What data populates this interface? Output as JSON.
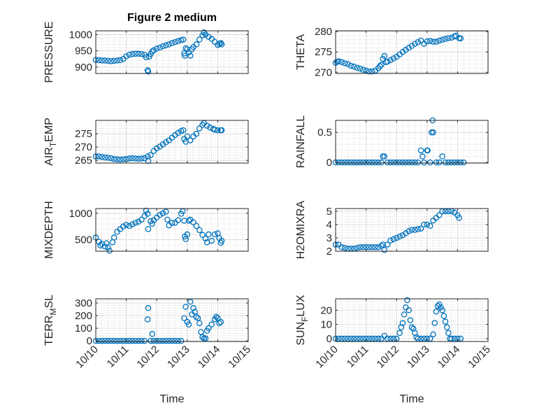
{
  "title": "Figure 2 medium",
  "colors": {
    "marker": "#0072BD",
    "axis": "#262626",
    "grid": "#dcdcdc"
  },
  "chart_data": [
    {
      "type": "scatter",
      "name": "pressure",
      "ylabel": "PRESSURE",
      "xlabel": "",
      "xlim": [
        0,
        5
      ],
      "ylim": [
        880,
        1012
      ],
      "yticks": [
        900,
        950,
        1000
      ],
      "ytick_labels": [
        "900",
        "950",
        "1000"
      ],
      "x": [
        0,
        0.1,
        0.2,
        0.3,
        0.4,
        0.5,
        0.6,
        0.7,
        0.8,
        0.9,
        1.0,
        1.1,
        1.2,
        1.3,
        1.4,
        1.5,
        1.6,
        1.65,
        1.7,
        1.72,
        1.75,
        1.8,
        1.85,
        1.9,
        2.0,
        2.1,
        2.2,
        2.3,
        2.4,
        2.5,
        2.6,
        2.7,
        2.8,
        2.87,
        2.9,
        2.92,
        2.95,
        3.0,
        3.05,
        3.1,
        3.15,
        3.2,
        3.3,
        3.4,
        3.5,
        3.55,
        3.6,
        3.7,
        3.8,
        3.9,
        4.0,
        4.05,
        4.1,
        4.13
      ],
      "y": [
        922,
        921,
        920,
        920,
        919,
        918,
        919,
        920,
        921,
        925,
        933,
        938,
        940,
        941,
        941,
        940,
        938,
        930,
        890,
        886,
        932,
        940,
        948,
        952,
        957,
        960,
        964,
        967,
        970,
        974,
        977,
        980,
        983,
        985,
        942,
        935,
        958,
        955,
        945,
        935,
        955,
        962,
        970,
        985,
        998,
        1007,
        1000,
        993,
        987,
        978,
        968,
        972,
        974,
        970
      ]
    },
    {
      "type": "scatter",
      "name": "theta",
      "ylabel": "THETA",
      "xlabel": "",
      "xlim": [
        0,
        5
      ],
      "ylim": [
        269.7,
        280.2
      ],
      "yticks": [
        270,
        275,
        280
      ],
      "ytick_labels": [
        "270",
        "275",
        "280"
      ],
      "x": [
        0,
        0.05,
        0.1,
        0.2,
        0.3,
        0.4,
        0.5,
        0.6,
        0.7,
        0.8,
        0.9,
        1.0,
        1.1,
        1.2,
        1.3,
        1.4,
        1.45,
        1.5,
        1.55,
        1.6,
        1.65,
        1.7,
        1.8,
        1.9,
        2.0,
        2.1,
        2.2,
        2.3,
        2.4,
        2.5,
        2.6,
        2.7,
        2.8,
        2.9,
        3.0,
        3.1,
        3.2,
        3.3,
        3.4,
        3.5,
        3.6,
        3.7,
        3.8,
        3.9,
        3.95,
        4.05,
        4.1
      ],
      "y": [
        272.3,
        272.6,
        272.7,
        272.5,
        272.2,
        272,
        271.6,
        271.4,
        271.1,
        270.9,
        270.6,
        270.4,
        270.2,
        270.2,
        270.4,
        271,
        271.5,
        271.8,
        273.3,
        274,
        272.5,
        272.6,
        273,
        273.4,
        273.8,
        274.4,
        275,
        275.5,
        276,
        276.5,
        277,
        277.4,
        277.8,
        277,
        277.6,
        277.7,
        277.5,
        277.5,
        277.8,
        278,
        278.2,
        278.4,
        278.5,
        278.8,
        279,
        278.4,
        278.3
      ]
    },
    {
      "type": "scatter",
      "name": "air-temp",
      "ylabel": "AIR_TEMP",
      "xlabel": "",
      "xlim": [
        0,
        5
      ],
      "ylim": [
        264,
        280
      ],
      "yticks": [
        265,
        270,
        275
      ],
      "ytick_labels": [
        "265",
        "270",
        "275"
      ],
      "x": [
        0,
        0.1,
        0.2,
        0.3,
        0.4,
        0.5,
        0.6,
        0.7,
        0.8,
        0.9,
        1.0,
        1.1,
        1.2,
        1.3,
        1.4,
        1.5,
        1.6,
        1.7,
        1.72,
        1.8,
        1.9,
        2.0,
        2.1,
        2.2,
        2.3,
        2.4,
        2.5,
        2.6,
        2.7,
        2.8,
        2.87,
        2.9,
        2.95,
        3.0,
        3.1,
        3.2,
        3.3,
        3.4,
        3.5,
        3.55,
        3.65,
        3.75,
        3.85,
        3.9,
        4.0,
        4.1,
        4.13
      ],
      "y": [
        266.5,
        266.5,
        266.3,
        266.1,
        266,
        265.8,
        265.5,
        265.4,
        265.3,
        265.4,
        265.5,
        265.7,
        265.8,
        265.7,
        265.6,
        265.7,
        265.8,
        266.5,
        264.8,
        267,
        268.5,
        269.5,
        270.2,
        271,
        271.8,
        272.5,
        273.5,
        274.5,
        275.3,
        276,
        276.3,
        273,
        272,
        274,
        272.5,
        274,
        275,
        277,
        278.3,
        279,
        278,
        277.3,
        276.8,
        276.5,
        276.3,
        276.3,
        276.3
      ]
    },
    {
      "type": "scatter",
      "name": "rainfall",
      "ylabel": "RAINFALL",
      "xlabel": "",
      "xlim": [
        0,
        5
      ],
      "ylim": [
        -0.01,
        0.7
      ],
      "yticks": [
        0,
        0.5
      ],
      "ytick_labels": [
        "0",
        "0.5"
      ],
      "x": [
        0,
        0.1,
        0.2,
        0.3,
        0.4,
        0.5,
        0.6,
        0.7,
        0.8,
        0.9,
        1.0,
        1.1,
        1.2,
        1.3,
        1.4,
        1.5,
        1.55,
        1.6,
        1.7,
        1.8,
        1.9,
        2.0,
        2.1,
        2.2,
        2.3,
        2.4,
        2.5,
        2.6,
        2.7,
        2.8,
        2.85,
        2.9,
        3.0,
        3.02,
        3.1,
        3.15,
        3.18,
        3.2,
        3.3,
        3.4,
        3.5,
        3.6,
        3.7,
        3.8,
        3.9,
        4.0,
        4.1,
        4.2
      ],
      "y": [
        0,
        0,
        0,
        0,
        0,
        0,
        0,
        0,
        0,
        0,
        0,
        0,
        0,
        0,
        0,
        0,
        0.1,
        0.1,
        0,
        0,
        0,
        0,
        0,
        0,
        0,
        0,
        0,
        0,
        0,
        0.2,
        0.1,
        0,
        0.2,
        0.2,
        0,
        0.5,
        0.7,
        0.5,
        0,
        0,
        0.1,
        0,
        0,
        0,
        0,
        0,
        0,
        0
      ]
    },
    {
      "type": "scatter",
      "name": "mixdepth",
      "ylabel": "MIXDEPTH",
      "xlabel": "",
      "xlim": [
        0,
        5
      ],
      "ylim": [
        280,
        1090
      ],
      "yticks": [
        500,
        1000
      ],
      "ytick_labels": [
        "500",
        "1000"
      ],
      "x": [
        0,
        0.1,
        0.15,
        0.2,
        0.3,
        0.35,
        0.4,
        0.45,
        0.55,
        0.6,
        0.7,
        0.8,
        0.9,
        1.0,
        1.1,
        1.2,
        1.3,
        1.4,
        1.5,
        1.6,
        1.65,
        1.7,
        1.72,
        1.8,
        1.85,
        1.9,
        2.0,
        2.1,
        2.2,
        2.3,
        2.35,
        2.4,
        2.5,
        2.6,
        2.7,
        2.8,
        2.85,
        2.9,
        2.92,
        2.95,
        3.0,
        3.05,
        3.1,
        3.2,
        3.3,
        3.4,
        3.5,
        3.6,
        3.65,
        3.7,
        3.8,
        3.9,
        4.0,
        4.05,
        4.1,
        4.13
      ],
      "y": [
        540,
        460,
        390,
        420,
        370,
        430,
        350,
        290,
        450,
        540,
        650,
        700,
        750,
        780,
        760,
        790,
        820,
        840,
        880,
        950,
        1050,
        990,
        700,
        850,
        800,
        870,
        920,
        970,
        1000,
        1030,
        880,
        770,
        820,
        820,
        870,
        990,
        1040,
        860,
        560,
        510,
        600,
        860,
        880,
        830,
        760,
        680,
        590,
        520,
        450,
        600,
        480,
        600,
        620,
        530,
        440,
        480
      ]
    },
    {
      "type": "scatter",
      "name": "h2omixra",
      "ylabel": "H2OMIXRA",
      "xlabel": "",
      "xlim": [
        0,
        5
      ],
      "ylim": [
        2,
        5.2
      ],
      "yticks": [
        2,
        3,
        4,
        5
      ],
      "ytick_labels": [
        "2",
        "3",
        "4",
        "5"
      ],
      "x": [
        0,
        0.1,
        0.2,
        0.3,
        0.4,
        0.5,
        0.6,
        0.7,
        0.8,
        0.9,
        1.0,
        1.1,
        1.2,
        1.3,
        1.4,
        1.5,
        1.55,
        1.6,
        1.7,
        1.8,
        1.9,
        2.0,
        2.1,
        2.2,
        2.3,
        2.4,
        2.5,
        2.6,
        2.7,
        2.8,
        2.9,
        3.0,
        3.1,
        3.2,
        3.3,
        3.4,
        3.5,
        3.6,
        3.7,
        3.8,
        3.9,
        4.0,
        4.05
      ],
      "y": [
        2.5,
        2.5,
        2.3,
        2.25,
        2.2,
        2.2,
        2.2,
        2.25,
        2.3,
        2.3,
        2.3,
        2.3,
        2.3,
        2.3,
        2.3,
        2.4,
        2.5,
        2.1,
        2.5,
        2.8,
        2.9,
        3.0,
        3.1,
        3.2,
        3.35,
        3.5,
        3.6,
        3.6,
        3.65,
        3.7,
        4.0,
        4.0,
        3.9,
        4.3,
        4.5,
        4.7,
        5.0,
        5.0,
        5.0,
        5.0,
        4.9,
        4.7,
        4.5
      ]
    },
    {
      "type": "scatter",
      "name": "terr-msl",
      "ylabel": "TERR_MSL",
      "xlabel": "Time",
      "xlim": [
        0,
        5
      ],
      "ylim": [
        -5,
        333
      ],
      "yticks": [
        0,
        100,
        200,
        300
      ],
      "ytick_labels": [
        "0",
        "100",
        "200",
        "300"
      ],
      "x": [
        0,
        0.1,
        0.2,
        0.3,
        0.4,
        0.5,
        0.6,
        0.7,
        0.8,
        0.9,
        1.0,
        1.1,
        1.2,
        1.3,
        1.4,
        1.5,
        1.6,
        1.7,
        1.72,
        1.8,
        1.85,
        1.9,
        2.0,
        2.1,
        2.2,
        2.3,
        2.4,
        2.5,
        2.6,
        2.7,
        2.8,
        2.9,
        2.95,
        3.0,
        3.05,
        3.1,
        3.15,
        3.2,
        3.25,
        3.3,
        3.35,
        3.4,
        3.45,
        3.5,
        3.55,
        3.6,
        3.65,
        3.7,
        3.8,
        3.9,
        3.95,
        4.0,
        4.05,
        4.1
      ],
      "y": [
        0,
        0,
        0,
        0,
        0,
        0,
        0,
        0,
        0,
        0,
        0,
        0,
        0,
        0,
        0,
        0,
        0,
        170,
        260,
        0,
        55,
        0,
        0,
        0,
        0,
        0,
        0,
        0,
        0,
        0,
        0,
        180,
        270,
        150,
        130,
        310,
        210,
        260,
        230,
        190,
        180,
        140,
        70,
        30,
        20,
        20,
        80,
        100,
        130,
        170,
        190,
        180,
        140,
        150
      ]
    },
    {
      "type": "scatter",
      "name": "sun-flux",
      "ylabel": "SUN_FLUX",
      "xlabel": "Time",
      "xlim": [
        0,
        5
      ],
      "ylim": [
        -2,
        28
      ],
      "yticks": [
        0,
        10,
        20
      ],
      "ytick_labels": [
        "0",
        "10",
        "20"
      ],
      "x": [
        0,
        0.1,
        0.2,
        0.3,
        0.4,
        0.5,
        0.6,
        0.7,
        0.8,
        0.9,
        1.0,
        1.1,
        1.2,
        1.3,
        1.4,
        1.5,
        1.6,
        1.7,
        1.8,
        1.9,
        2.0,
        2.1,
        2.15,
        2.2,
        2.25,
        2.3,
        2.35,
        2.4,
        2.45,
        2.5,
        2.55,
        2.6,
        2.65,
        2.7,
        2.8,
        2.9,
        3.0,
        3.1,
        3.2,
        3.25,
        3.3,
        3.35,
        3.4,
        3.45,
        3.5,
        3.55,
        3.6,
        3.65,
        3.7,
        3.75,
        3.8,
        3.9,
        4.0,
        4.1
      ],
      "y": [
        0,
        0,
        0,
        0,
        0,
        0,
        0,
        0,
        0,
        0,
        0,
        0,
        0,
        0,
        0,
        0,
        2,
        0,
        0,
        0,
        0,
        4,
        8,
        11,
        17,
        22,
        27,
        20,
        13,
        8,
        7,
        4,
        1,
        0,
        0,
        0,
        0,
        0,
        3,
        11,
        19,
        23,
        24,
        22,
        20,
        16,
        12,
        8,
        4,
        0,
        0,
        0,
        0,
        0
      ]
    }
  ],
  "xticks": [
    0,
    1,
    2,
    3,
    4,
    5
  ],
  "xtick_labels": [
    "10/10",
    "10/11",
    "10/12",
    "10/13",
    "10/14",
    "10/15"
  ]
}
